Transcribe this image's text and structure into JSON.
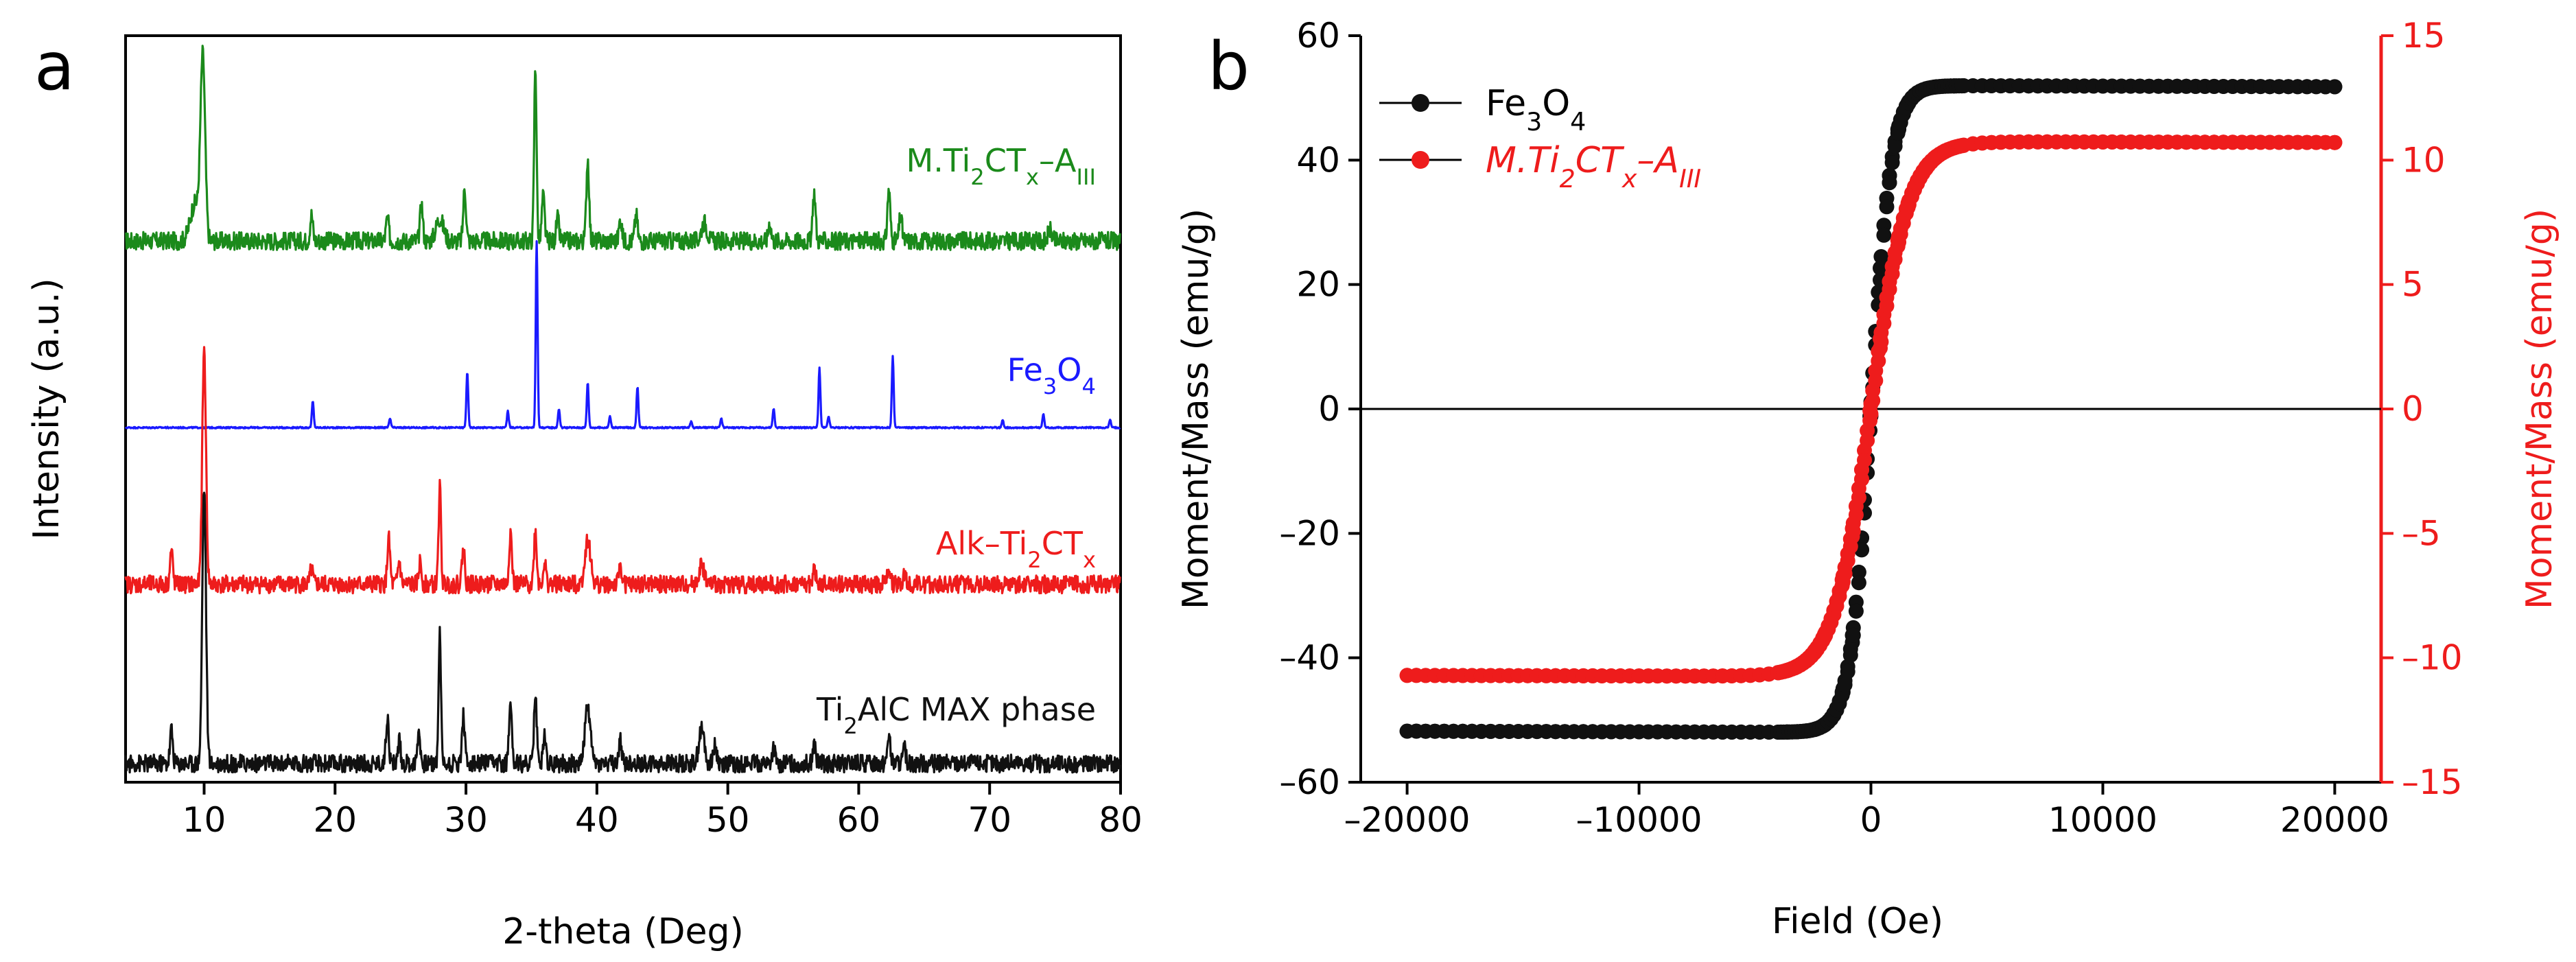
{
  "chart_data": [
    {
      "panel": "a",
      "type": "line",
      "xlabel": "2-theta (Deg)",
      "ylabel": "Intensity (a.u.)",
      "xlim": [
        4,
        80
      ],
      "xticks": [
        10,
        20,
        30,
        40,
        50,
        60,
        70,
        80
      ],
      "series": [
        {
          "name": "M.Ti2CTx-AIII",
          "label_parts": [
            {
              "t": "M.Ti"
            },
            {
              "t": "2",
              "sub": true
            },
            {
              "t": "CT"
            },
            {
              "t": "x",
              "sub": true
            },
            {
              "t": "–A"
            },
            {
              "t": "III",
              "sub": true
            }
          ],
          "color": "#1b8a1b",
          "baseline": 0.725,
          "noise": 0.012,
          "peaks": [
            [
              9.9,
              0.24,
              0.25
            ],
            [
              9.3,
              0.05,
              0.5
            ],
            [
              18.2,
              0.035,
              0.15
            ],
            [
              24.0,
              0.03,
              0.15
            ],
            [
              26.6,
              0.05,
              0.15
            ],
            [
              28.0,
              0.03,
              0.4
            ],
            [
              29.9,
              0.07,
              0.15
            ],
            [
              35.3,
              0.235,
              0.13
            ],
            [
              35.9,
              0.06,
              0.15
            ],
            [
              37.0,
              0.03,
              0.15
            ],
            [
              39.3,
              0.11,
              0.15
            ],
            [
              41.8,
              0.03,
              0.15
            ],
            [
              43.0,
              0.035,
              0.15
            ],
            [
              48.2,
              0.025,
              0.3
            ],
            [
              53.2,
              0.025,
              0.15
            ],
            [
              56.6,
              0.065,
              0.15
            ],
            [
              62.3,
              0.07,
              0.15
            ],
            [
              63.2,
              0.035,
              0.15
            ],
            [
              74.6,
              0.015,
              0.2
            ]
          ]
        },
        {
          "name": "Fe3O4",
          "label_parts": [
            {
              "t": "Fe"
            },
            {
              "t": "3",
              "sub": true
            },
            {
              "t": "O"
            },
            {
              "t": "4",
              "sub": true
            }
          ],
          "color": "#1a1aff",
          "baseline": 0.475,
          "noise": 0.001,
          "peaks": [
            [
              18.3,
              0.035,
              0.1
            ],
            [
              24.2,
              0.012,
              0.1
            ],
            [
              30.1,
              0.075,
              0.1
            ],
            [
              33.2,
              0.022,
              0.1
            ],
            [
              35.4,
              0.25,
              0.1
            ],
            [
              37.1,
              0.025,
              0.1
            ],
            [
              39.3,
              0.06,
              0.1
            ],
            [
              41.0,
              0.015,
              0.1
            ],
            [
              43.1,
              0.055,
              0.1
            ],
            [
              47.2,
              0.008,
              0.1
            ],
            [
              49.5,
              0.012,
              0.1
            ],
            [
              53.5,
              0.025,
              0.1
            ],
            [
              57.0,
              0.08,
              0.1
            ],
            [
              57.7,
              0.015,
              0.1
            ],
            [
              62.6,
              0.095,
              0.1
            ],
            [
              71.0,
              0.01,
              0.1
            ],
            [
              74.1,
              0.018,
              0.1
            ],
            [
              79.2,
              0.01,
              0.1
            ]
          ]
        },
        {
          "name": "Alk-Ti2CTx",
          "label_parts": [
            {
              "t": "Alk–Ti"
            },
            {
              "t": "2",
              "sub": true
            },
            {
              "t": "CT"
            },
            {
              "t": "x",
              "sub": true
            }
          ],
          "color": "#ee1c1c",
          "baseline": 0.265,
          "noise": 0.012,
          "peaks": [
            [
              7.5,
              0.045,
              0.15
            ],
            [
              10.0,
              0.315,
              0.2
            ],
            [
              18.2,
              0.02,
              0.15
            ],
            [
              24.1,
              0.06,
              0.15
            ],
            [
              24.9,
              0.03,
              0.15
            ],
            [
              26.5,
              0.03,
              0.15
            ],
            [
              28.0,
              0.13,
              0.13
            ],
            [
              29.8,
              0.05,
              0.15
            ],
            [
              33.4,
              0.07,
              0.15
            ],
            [
              35.3,
              0.07,
              0.15
            ],
            [
              36.0,
              0.03,
              0.15
            ],
            [
              39.3,
              0.06,
              0.3
            ],
            [
              41.8,
              0.025,
              0.15
            ],
            [
              48.0,
              0.025,
              0.3
            ],
            [
              56.6,
              0.02,
              0.15
            ],
            [
              62.3,
              0.025,
              0.15
            ],
            [
              63.5,
              0.015,
              0.15
            ]
          ]
        },
        {
          "name": "Ti2AlC MAX phase",
          "label_parts": [
            {
              "t": "Ti"
            },
            {
              "t": "2",
              "sub": true
            },
            {
              "t": "AlC MAX phase"
            }
          ],
          "color": "#111111",
          "baseline": 0.025,
          "noise": 0.012,
          "peaks": [
            [
              7.5,
              0.045,
              0.15
            ],
            [
              10.0,
              0.37,
              0.2
            ],
            [
              24.0,
              0.065,
              0.15
            ],
            [
              24.9,
              0.03,
              0.15
            ],
            [
              26.4,
              0.045,
              0.15
            ],
            [
              28.0,
              0.175,
              0.13
            ],
            [
              29.8,
              0.065,
              0.15
            ],
            [
              33.4,
              0.09,
              0.15
            ],
            [
              35.3,
              0.09,
              0.15
            ],
            [
              36.0,
              0.04,
              0.15
            ],
            [
              39.3,
              0.075,
              0.3
            ],
            [
              41.8,
              0.03,
              0.15
            ],
            [
              48.0,
              0.045,
              0.3
            ],
            [
              49.0,
              0.025,
              0.2
            ],
            [
              53.5,
              0.02,
              0.15
            ],
            [
              56.6,
              0.025,
              0.15
            ],
            [
              62.3,
              0.04,
              0.15
            ],
            [
              63.5,
              0.02,
              0.15
            ]
          ]
        }
      ]
    },
    {
      "panel": "b",
      "type": "scatter",
      "xlabel": "Field (Oe)",
      "ylabel_left": "Moment/Mass (emu/g)",
      "ylabel_right": "Moment/Mass (emu/g)",
      "xlim": [
        -22000,
        22000
      ],
      "ylim_left": [
        -60,
        60
      ],
      "ylim_right": [
        -15,
        15
      ],
      "xticks": [
        -20000,
        -10000,
        0,
        10000,
        20000
      ],
      "xtick_labels": [
        "–20000",
        "–10000",
        "0",
        "10000",
        "20000"
      ],
      "yticks_left": [
        -60,
        -40,
        -20,
        0,
        20,
        40,
        60
      ],
      "ytick_labels_left": [
        "–60",
        "–40",
        "–20",
        "0",
        "20",
        "40",
        "60"
      ],
      "yticks_right": [
        -15,
        -10,
        -5,
        0,
        5,
        10,
        15
      ],
      "ytick_labels_right": [
        "–15",
        "–10",
        "–5",
        "0",
        "5",
        "10",
        "15"
      ],
      "series": [
        {
          "name": "Fe3O4",
          "label_parts": [
            {
              "t": "Fe"
            },
            {
              "t": "3",
              "sub": true
            },
            {
              "t": "O"
            },
            {
              "t": "4",
              "sub": true
            }
          ],
          "color": "#111111",
          "axis": "left",
          "ms": 52,
          "hc": 20,
          "h0": 900,
          "hmax": 20000
        },
        {
          "name": "M.Ti2CTx-AIII",
          "label_parts": [
            {
              "t": "M.Ti"
            },
            {
              "t": "2",
              "sub": true
            },
            {
              "t": "CT"
            },
            {
              "t": "x",
              "sub": true
            },
            {
              "t": "–A"
            },
            {
              "t": "III",
              "sub": true
            }
          ],
          "color": "#ee1c1c",
          "axis": "right",
          "ms": 10.75,
          "hc": 30,
          "h0": 1600,
          "hmax": 20000
        }
      ]
    }
  ],
  "panel_labels": {
    "a": "a",
    "b": "b"
  }
}
